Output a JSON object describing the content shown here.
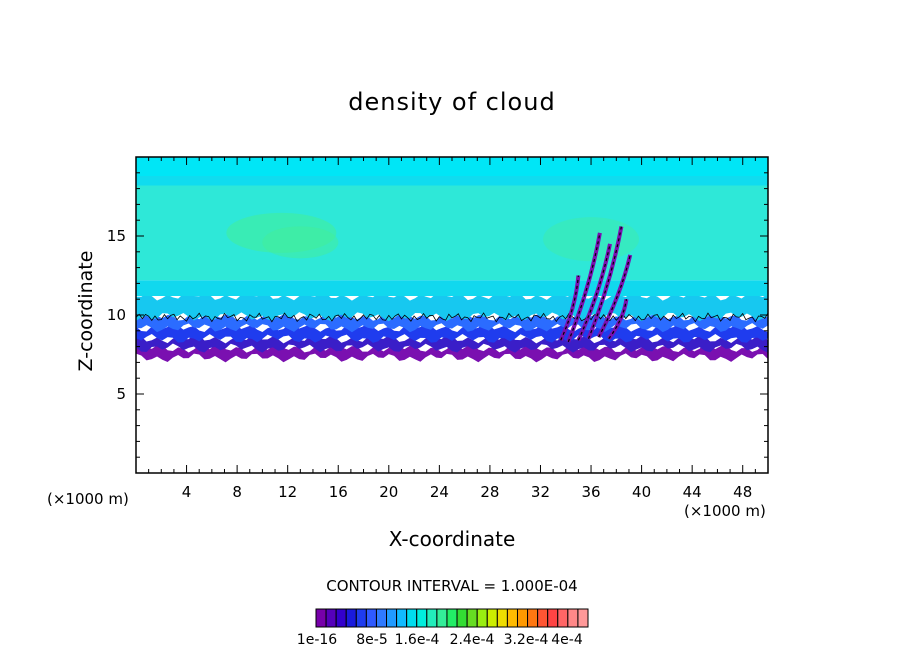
{
  "chart_data": {
    "type": "heatmap",
    "title": "density of cloud",
    "xlabel": "X-coordinate",
    "ylabel": "Z-coordinate",
    "x_unit_label": "(×1000 m)",
    "xlim": [
      0,
      50
    ],
    "ylim": [
      0,
      20
    ],
    "x_ticks": [
      "4",
      "8",
      "12",
      "16",
      "20",
      "24",
      "28",
      "32",
      "36",
      "40",
      "44",
      "48"
    ],
    "y_ticks": [
      "5",
      "10",
      "15"
    ],
    "contour_interval_label": "CONTOUR INTERVAL = 1.000E-04",
    "colorbar": {
      "labels": [
        "1e-16",
        "8e-5",
        "1.6e-4",
        "2.4e-4",
        "3.2e-4",
        "4e-4"
      ],
      "label_text": "1e-16  8e-5  1.6e-42.4e-43.2e-4  4e-4",
      "colors": [
        "#7700aa",
        "#5500bb",
        "#3300cc",
        "#1a1add",
        "#1f3cee",
        "#2f5aff",
        "#2f7aff",
        "#219bff",
        "#11bbff",
        "#00ddee",
        "#00eedd",
        "#22eebb",
        "#33ee99",
        "#22ee66",
        "#33dd33",
        "#66dd22",
        "#99ee11",
        "#ccee00",
        "#eedd00",
        "#ffbb00",
        "#ff9900",
        "#ff7711",
        "#ff5533",
        "#ff4444",
        "#ff6666",
        "#ff8888",
        "#ff9999"
      ]
    },
    "field_bands": [
      {
        "z_from": 7.3,
        "z_to": 7.9,
        "color": "#7a10b0"
      },
      {
        "z_from": 7.9,
        "z_to": 8.5,
        "color": "#3a1ec8"
      },
      {
        "z_from": 8.5,
        "z_to": 9.2,
        "color": "#1f3cee"
      },
      {
        "z_from": 9.2,
        "z_to": 9.9,
        "color": "#2b6cff"
      },
      {
        "z_from": 9.9,
        "z_to": 11.2,
        "color": "#17c8f0"
      },
      {
        "z_from": 11.2,
        "z_to": 12.2,
        "color": "#11d8ee"
      },
      {
        "z_from": 12.2,
        "z_to": 18.2,
        "color": "#2ee8d8"
      },
      {
        "z_from": 18.2,
        "z_to": 18.8,
        "color": "#10dcef"
      },
      {
        "z_from": 18.8,
        "z_to": 20,
        "color": "#00e6f6"
      }
    ],
    "legend_position": "bottom-center",
    "grid": false
  }
}
